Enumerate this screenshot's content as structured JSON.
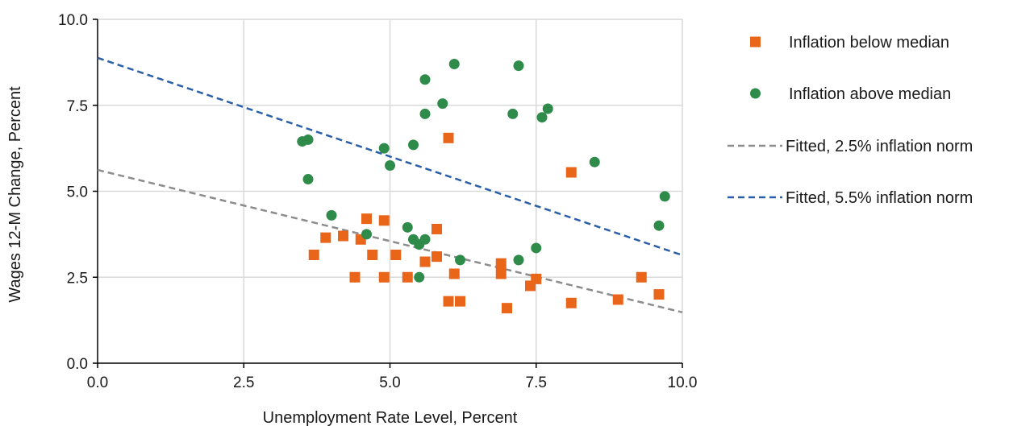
{
  "chart_data": {
    "type": "scatter",
    "xlabel": "Unemployment Rate Level, Percent",
    "ylabel": "Wages 12-M Change, Percent",
    "xlim": [
      0,
      10
    ],
    "ylim": [
      0,
      10
    ],
    "x_ticks": [
      "0.0",
      "2.5",
      "5.0",
      "7.5",
      "10.0"
    ],
    "y_ticks": [
      "0.0",
      "2.5",
      "5.0",
      "7.5",
      "10.0"
    ],
    "grid": true,
    "legend_position": "right",
    "series": [
      {
        "name": "Inflation below median",
        "kind": "scatter",
        "marker": "square",
        "color": "#e8651a",
        "points": [
          [
            3.7,
            3.15
          ],
          [
            3.9,
            3.65
          ],
          [
            4.2,
            3.7
          ],
          [
            4.4,
            2.5
          ],
          [
            4.5,
            3.6
          ],
          [
            4.6,
            4.2
          ],
          [
            4.7,
            3.15
          ],
          [
            4.9,
            4.15
          ],
          [
            4.9,
            2.5
          ],
          [
            5.1,
            3.15
          ],
          [
            5.3,
            2.5
          ],
          [
            5.6,
            2.95
          ],
          [
            5.8,
            3.9
          ],
          [
            5.8,
            3.1
          ],
          [
            6.0,
            6.55
          ],
          [
            6.0,
            1.8
          ],
          [
            6.1,
            2.6
          ],
          [
            6.2,
            1.8
          ],
          [
            6.9,
            2.9
          ],
          [
            6.9,
            2.6
          ],
          [
            7.0,
            1.6
          ],
          [
            7.4,
            2.25
          ],
          [
            7.5,
            2.45
          ],
          [
            8.1,
            5.55
          ],
          [
            8.1,
            1.75
          ],
          [
            8.9,
            1.85
          ],
          [
            9.3,
            2.5
          ],
          [
            9.6,
            2.0
          ]
        ]
      },
      {
        "name": "Inflation above median",
        "kind": "scatter",
        "marker": "circle",
        "color": "#2e8b4a",
        "points": [
          [
            3.5,
            6.45
          ],
          [
            3.6,
            6.5
          ],
          [
            3.6,
            5.35
          ],
          [
            4.0,
            4.3
          ],
          [
            4.6,
            3.75
          ],
          [
            4.9,
            6.25
          ],
          [
            5.0,
            5.75
          ],
          [
            5.3,
            3.95
          ],
          [
            5.4,
            6.35
          ],
          [
            5.4,
            3.6
          ],
          [
            5.5,
            3.45
          ],
          [
            5.5,
            2.5
          ],
          [
            5.6,
            8.25
          ],
          [
            5.6,
            7.25
          ],
          [
            5.6,
            3.6
          ],
          [
            5.9,
            7.55
          ],
          [
            6.1,
            8.7
          ],
          [
            6.2,
            3.0
          ],
          [
            7.1,
            7.25
          ],
          [
            7.2,
            8.65
          ],
          [
            7.2,
            3.0
          ],
          [
            7.5,
            3.35
          ],
          [
            7.6,
            7.15
          ],
          [
            7.7,
            7.4
          ],
          [
            8.5,
            5.85
          ],
          [
            9.6,
            4.0
          ],
          [
            9.7,
            4.85
          ]
        ]
      },
      {
        "name": "Fitted, 2.5% inflation norm",
        "kind": "line",
        "style": "dashed",
        "color": "#8c8c8c",
        "points": [
          [
            0,
            5.62
          ],
          [
            10,
            1.48
          ]
        ]
      },
      {
        "name": "Fitted, 5.5% inflation norm",
        "kind": "line",
        "style": "dashed",
        "color": "#2a5fa8",
        "points": [
          [
            0,
            8.88
          ],
          [
            10,
            3.14
          ]
        ]
      }
    ]
  }
}
